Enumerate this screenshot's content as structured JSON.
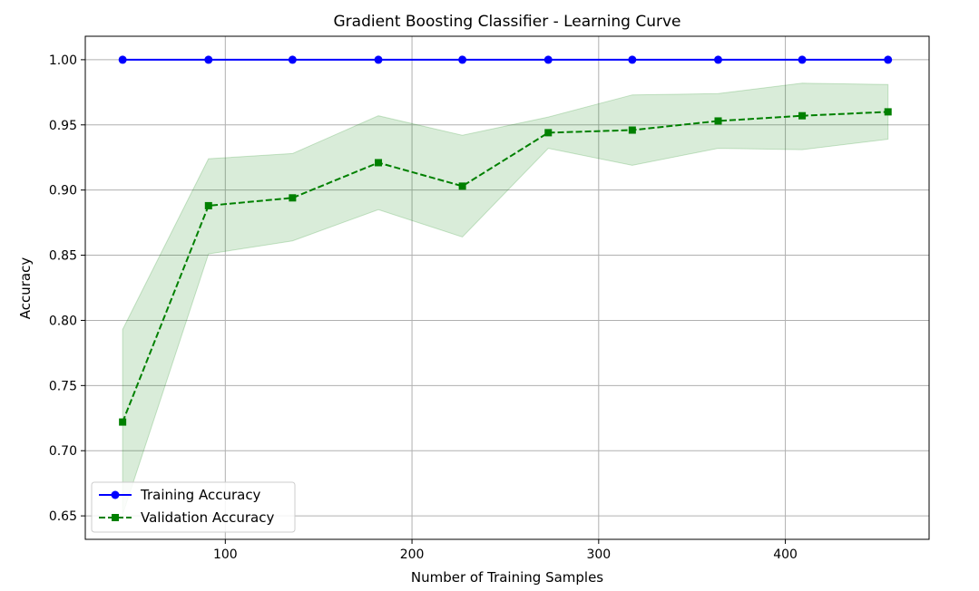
{
  "chart_data": {
    "type": "line",
    "title": "Gradient Boosting Classifier - Learning Curve",
    "xlabel": "Number of Training Samples",
    "ylabel": "Accuracy",
    "xlim": [
      25,
      477
    ],
    "ylim": [
      0.632,
      1.018
    ],
    "xticks": [
      100,
      200,
      300,
      400
    ],
    "yticks": [
      0.65,
      0.7,
      0.75,
      0.8,
      0.85,
      0.9,
      0.95,
      1.0
    ],
    "grid": true,
    "legend_position": "lower-left",
    "x": [
      45,
      91,
      136,
      182,
      227,
      273,
      318,
      364,
      409,
      455
    ],
    "series": [
      {
        "name": "Training Accuracy",
        "values": [
          1.0,
          1.0,
          1.0,
          1.0,
          1.0,
          1.0,
          1.0,
          1.0,
          1.0,
          1.0
        ],
        "color": "#0000ff",
        "line_style": "solid",
        "marker": "circle"
      },
      {
        "name": "Validation Accuracy",
        "values": [
          0.722,
          0.888,
          0.894,
          0.921,
          0.903,
          0.944,
          0.946,
          0.953,
          0.957,
          0.96
        ],
        "color": "#008000",
        "line_style": "dashed",
        "marker": "square",
        "band_lower": [
          0.651,
          0.851,
          0.861,
          0.885,
          0.864,
          0.932,
          0.919,
          0.932,
          0.931,
          0.939
        ],
        "band_upper": [
          0.793,
          0.924,
          0.928,
          0.957,
          0.942,
          0.956,
          0.973,
          0.974,
          0.982,
          0.981
        ],
        "band_color": "#008000"
      }
    ]
  }
}
